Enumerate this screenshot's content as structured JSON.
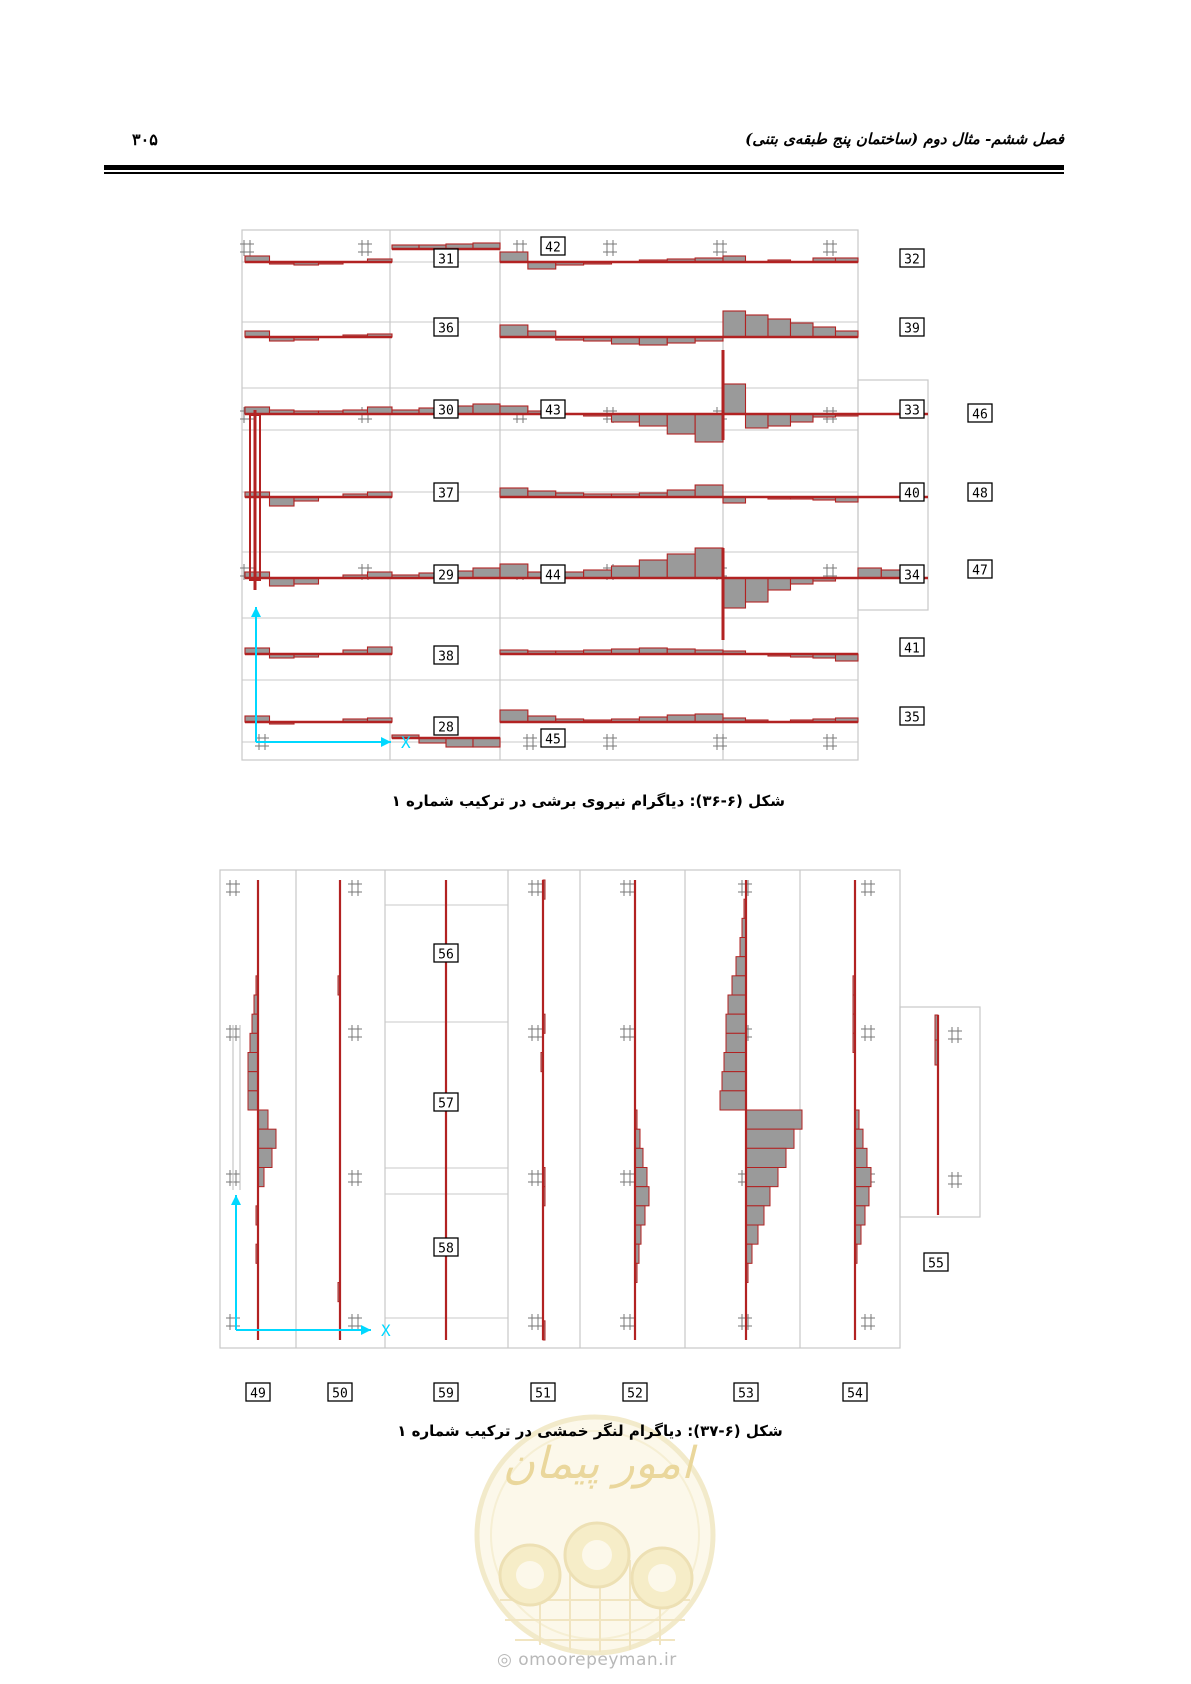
{
  "header": {
    "chapter_title": "فصل ششم- مثال دوم (ساختمان پنج طبقه‌ی بتنی)",
    "page_number": "۳۰۵"
  },
  "figure_36": {
    "caption": "شکل (۶-۳۶): دیاگرام نیروی برشی در ترکیب شماره ۱",
    "labels": [
      "31",
      "36",
      "30",
      "37",
      "29",
      "38",
      "28",
      "42",
      "43",
      "44",
      "45",
      "32",
      "39",
      "33",
      "40",
      "34",
      "41",
      "35",
      "46",
      "48",
      "47"
    ],
    "axis_label": "X"
  },
  "figure_37": {
    "caption": "شکل (۶-۳۷): دیاگرام لنگر خمشی در ترکیب شماره ۱",
    "labels": [
      "56",
      "57",
      "58",
      "55"
    ],
    "bottom_labels": [
      "49",
      "50",
      "59",
      "51",
      "52",
      "53",
      "54"
    ],
    "axis_label": "X"
  },
  "watermark": {
    "site": "omoorepeyman.ir",
    "logo_text": "امور پیمان"
  },
  "colors": {
    "diagram_line": "#b22222",
    "diagram_fill": "#9a9a9a",
    "grid": "#c8c8c8",
    "axis": "#00d8ff",
    "watermark": "#e8d89a"
  }
}
